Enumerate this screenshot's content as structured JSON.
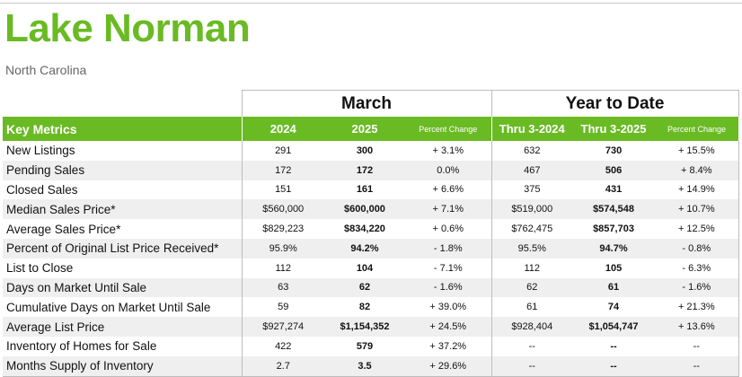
{
  "header": {
    "title": "Lake Norman",
    "subtitle": "North Carolina"
  },
  "groups": {
    "march": "March",
    "ytd": "Year to Date"
  },
  "columns": {
    "key": "Key Metrics",
    "y2024": "2024",
    "y2025": "2025",
    "pct": "Percent Change",
    "ytd2024": "Thru 3-2024",
    "ytd2025": "Thru 3-2025",
    "ytdpct": "Percent Change"
  },
  "rows": [
    {
      "label": "New Listings",
      "m2024": "291",
      "m2025": "300",
      "mpct": "+ 3.1%",
      "y2024": "632",
      "y2025": "730",
      "ypct": "+ 15.5%"
    },
    {
      "label": "Pending Sales",
      "m2024": "172",
      "m2025": "172",
      "mpct": "0.0%",
      "y2024": "467",
      "y2025": "506",
      "ypct": "+ 8.4%"
    },
    {
      "label": "Closed Sales",
      "m2024": "151",
      "m2025": "161",
      "mpct": "+ 6.6%",
      "y2024": "375",
      "y2025": "431",
      "ypct": "+ 14.9%"
    },
    {
      "label": "Median Sales Price*",
      "m2024": "$560,000",
      "m2025": "$600,000",
      "mpct": "+ 7.1%",
      "y2024": "$519,000",
      "y2025": "$574,548",
      "ypct": "+ 10.7%"
    },
    {
      "label": "Average Sales Price*",
      "m2024": "$829,223",
      "m2025": "$834,220",
      "mpct": "+ 0.6%",
      "y2024": "$762,475",
      "y2025": "$857,703",
      "ypct": "+ 12.5%"
    },
    {
      "label": "Percent of Original List Price Received*",
      "m2024": "95.9%",
      "m2025": "94.2%",
      "mpct": "- 1.8%",
      "y2024": "95.5%",
      "y2025": "94.7%",
      "ypct": "- 0.8%"
    },
    {
      "label": "List to Close",
      "m2024": "112",
      "m2025": "104",
      "mpct": "- 7.1%",
      "y2024": "112",
      "y2025": "105",
      "ypct": "- 6.3%"
    },
    {
      "label": "Days on Market Until Sale",
      "m2024": "63",
      "m2025": "62",
      "mpct": "- 1.6%",
      "y2024": "62",
      "y2025": "61",
      "ypct": "- 1.6%"
    },
    {
      "label": "Cumulative Days on Market Until Sale",
      "m2024": "59",
      "m2025": "82",
      "mpct": "+ 39.0%",
      "y2024": "61",
      "y2025": "74",
      "ypct": "+ 21.3%"
    },
    {
      "label": "Average List Price",
      "m2024": "$927,274",
      "m2025": "$1,154,352",
      "mpct": "+ 24.5%",
      "y2024": "$928,404",
      "y2025": "$1,054,747",
      "ypct": "+ 13.6%"
    },
    {
      "label": "Inventory of Homes for Sale",
      "m2024": "422",
      "m2025": "579",
      "mpct": "+ 37.2%",
      "y2024": "--",
      "y2025": "--",
      "ypct": "--"
    },
    {
      "label": "Months Supply of Inventory",
      "m2024": "2.7",
      "m2025": "3.5",
      "mpct": "+ 29.6%",
      "y2024": "--",
      "y2025": "--",
      "ypct": "--"
    }
  ],
  "colors": {
    "brand_green": "#6aba24",
    "row_alt": "#efefef"
  }
}
